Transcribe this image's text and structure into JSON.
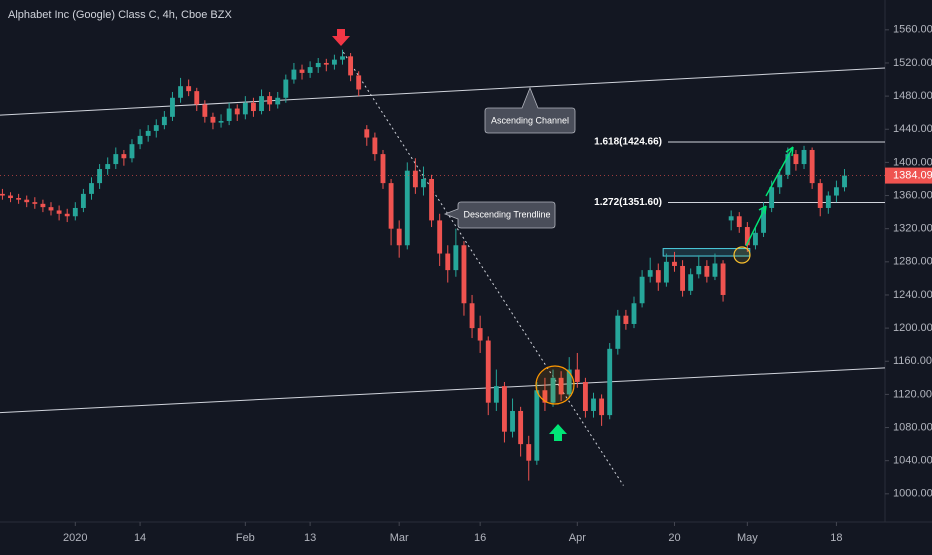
{
  "chart_data": {
    "type": "candlestick",
    "title": "Alphabet Inc (Google) Class C, 4h, Cboe BZX",
    "x": [
      -9,
      -8,
      -7,
      -6,
      -5,
      -4,
      -3,
      -2,
      -1,
      0,
      1,
      2,
      3,
      4,
      5,
      6,
      7,
      8,
      9,
      10,
      11,
      12,
      13,
      14,
      15,
      16,
      17,
      18,
      19,
      20,
      21,
      22,
      23,
      24,
      25,
      26,
      27,
      28,
      29,
      30,
      31,
      32,
      33,
      34,
      35,
      36,
      37,
      38,
      39,
      40,
      41,
      42,
      43,
      44,
      45,
      46,
      47,
      48,
      49,
      50,
      51,
      52,
      53,
      54,
      55,
      56,
      57,
      58,
      59,
      60,
      61,
      62,
      63,
      64,
      65,
      66,
      67,
      68,
      69,
      70,
      71,
      72,
      73,
      74,
      75,
      76,
      77,
      78,
      79,
      80,
      81,
      82,
      83,
      84,
      85,
      86,
      87,
      88,
      89,
      90,
      91,
      92,
      93,
      94,
      95
    ],
    "open": [
      1362,
      1360,
      1357,
      1355,
      1352,
      1350,
      1346,
      1342,
      1338,
      1335,
      1345,
      1362,
      1375,
      1392,
      1398,
      1410,
      1405,
      1422,
      1432,
      1438,
      1445,
      1455,
      1478,
      1492,
      1486,
      1470,
      1455,
      1448,
      1450,
      1465,
      1458,
      1472,
      1462,
      1480,
      1470,
      1478,
      1500,
      1512,
      1508,
      1515,
      1520,
      1518,
      1524,
      1528,
      1505,
      1440,
      1430,
      1410,
      1375,
      1320,
      1300,
      1390,
      1370,
      1380,
      1330,
      1290,
      1270,
      1300,
      1230,
      1200,
      1185,
      1110,
      1130,
      1075,
      1100,
      1060,
      1040,
      1125,
      1110,
      1140,
      1120,
      1150,
      1135,
      1100,
      1115,
      1095,
      1175,
      1215,
      1205,
      1230,
      1262,
      1270,
      1255,
      1280,
      1275,
      1245,
      1265,
      1275,
      1262,
      1278,
      1330,
      1335,
      1322,
      1300,
      1315,
      1345,
      1370,
      1385,
      1410,
      1398,
      1415,
      1375,
      1345,
      1360,
      1370
    ],
    "high": [
      1368,
      1364,
      1362,
      1360,
      1358,
      1355,
      1352,
      1348,
      1344,
      1352,
      1368,
      1382,
      1398,
      1406,
      1418,
      1415,
      1428,
      1440,
      1445,
      1452,
      1462,
      1485,
      1502,
      1500,
      1490,
      1475,
      1460,
      1458,
      1472,
      1470,
      1480,
      1478,
      1488,
      1485,
      1485,
      1506,
      1520,
      1518,
      1522,
      1526,
      1525,
      1530,
      1536,
      1532,
      1510,
      1445,
      1436,
      1415,
      1380,
      1330,
      1400,
      1405,
      1395,
      1385,
      1338,
      1300,
      1320,
      1305,
      1240,
      1215,
      1190,
      1150,
      1135,
      1115,
      1105,
      1070,
      1135,
      1140,
      1150,
      1148,
      1165,
      1170,
      1140,
      1122,
      1120,
      1182,
      1222,
      1222,
      1238,
      1270,
      1285,
      1278,
      1290,
      1292,
      1282,
      1272,
      1288,
      1282,
      1290,
      1282,
      1342,
      1340,
      1328,
      1322,
      1352,
      1378,
      1392,
      1418,
      1415,
      1420,
      1418,
      1380,
      1365,
      1378,
      1392
    ],
    "low": [
      1355,
      1352,
      1350,
      1346,
      1344,
      1340,
      1336,
      1330,
      1328,
      1330,
      1340,
      1355,
      1368,
      1385,
      1392,
      1396,
      1400,
      1416,
      1425,
      1430,
      1440,
      1450,
      1472,
      1480,
      1462,
      1448,
      1440,
      1442,
      1445,
      1450,
      1452,
      1455,
      1458,
      1462,
      1465,
      1472,
      1495,
      1500,
      1502,
      1508,
      1510,
      1512,
      1518,
      1498,
      1480,
      1420,
      1402,
      1368,
      1300,
      1285,
      1295,
      1362,
      1360,
      1322,
      1275,
      1255,
      1262,
      1215,
      1188,
      1170,
      1095,
      1100,
      1062,
      1068,
      1045,
      1016,
      1035,
      1100,
      1105,
      1112,
      1115,
      1128,
      1092,
      1092,
      1082,
      1090,
      1168,
      1198,
      1200,
      1225,
      1255,
      1245,
      1250,
      1268,
      1238,
      1240,
      1260,
      1255,
      1258,
      1232,
      1318,
      1315,
      1292,
      1295,
      1310,
      1340,
      1362,
      1380,
      1390,
      1392,
      1368,
      1335,
      1338,
      1352,
      1365
    ],
    "close": [
      1360,
      1357,
      1355,
      1352,
      1350,
      1346,
      1342,
      1338,
      1335,
      1345,
      1362,
      1375,
      1392,
      1398,
      1410,
      1405,
      1422,
      1432,
      1438,
      1445,
      1455,
      1478,
      1492,
      1486,
      1470,
      1455,
      1448,
      1450,
      1465,
      1458,
      1472,
      1462,
      1480,
      1470,
      1478,
      1500,
      1512,
      1508,
      1515,
      1520,
      1518,
      1524,
      1528,
      1505,
      1488,
      1430,
      1410,
      1375,
      1320,
      1300,
      1390,
      1370,
      1380,
      1330,
      1290,
      1270,
      1300,
      1230,
      1200,
      1185,
      1110,
      1130,
      1075,
      1100,
      1060,
      1040,
      1125,
      1110,
      1140,
      1120,
      1150,
      1135,
      1100,
      1115,
      1095,
      1175,
      1215,
      1205,
      1230,
      1262,
      1270,
      1255,
      1280,
      1275,
      1245,
      1265,
      1275,
      1262,
      1278,
      1240,
      1335,
      1322,
      1300,
      1315,
      1345,
      1370,
      1385,
      1410,
      1398,
      1415,
      1375,
      1345,
      1360,
      1370,
      1384.09
    ],
    "up_color": "#26a69a",
    "down_color": "#ef5350",
    "xlim": [
      -9.3,
      100
    ],
    "ylim": [
      966,
      1596
    ],
    "grid": false,
    "xticks": [
      {
        "value": 0,
        "label": "2020"
      },
      {
        "value": 8,
        "label": "14"
      },
      {
        "value": 21,
        "label": "Feb"
      },
      {
        "value": 29,
        "label": "13"
      },
      {
        "value": 40,
        "label": "Mar"
      },
      {
        "value": 50,
        "label": "16"
      },
      {
        "value": 62,
        "label": "Apr"
      },
      {
        "value": 74,
        "label": "20"
      },
      {
        "value": 83,
        "label": "May"
      },
      {
        "value": 94,
        "label": "18"
      }
    ],
    "yticks": [
      {
        "value": 1000,
        "label": "1000.00"
      },
      {
        "value": 1040,
        "label": "1040.00"
      },
      {
        "value": 1080,
        "label": "1080.00"
      },
      {
        "value": 1120,
        "label": "1120.00"
      },
      {
        "value": 1160,
        "label": "1160.00"
      },
      {
        "value": 1200,
        "label": "1200.00"
      },
      {
        "value": 1240,
        "label": "1240.00"
      },
      {
        "value": 1280,
        "label": "1280.00"
      },
      {
        "value": 1320,
        "label": "1320.00"
      },
      {
        "value": 1360,
        "label": "1360.00"
      },
      {
        "value": 1400,
        "label": "1400.00"
      },
      {
        "value": 1440,
        "label": "1440.00"
      },
      {
        "value": 1480,
        "label": "1480.00"
      },
      {
        "value": 1520,
        "label": "1520.00"
      },
      {
        "value": 1560,
        "label": "1560.00"
      }
    ],
    "channel_upper": {
      "x": [
        -9.3,
        100
      ],
      "y": [
        1457,
        1514
      ]
    },
    "channel_lower": {
      "x": [
        -9.3,
        100
      ],
      "y": [
        1098,
        1152
      ]
    },
    "trendline": {
      "x": [
        33.1,
        67.7
      ],
      "y": [
        1533,
        1010
      ]
    },
    "levels": [
      {
        "value": 1424.66,
        "label": "1.618(1424.66)",
        "x_start": 73.2
      },
      {
        "value": 1351.6,
        "label": "1.272(1351.60)",
        "x_start": 73.2
      }
    ],
    "zone": {
      "x": [
        72.6,
        83.3
      ],
      "y": [
        1287,
        1296
      ]
    },
    "annotations": [
      "Ascending Channel",
      "Descending Trendline"
    ]
  }
}
